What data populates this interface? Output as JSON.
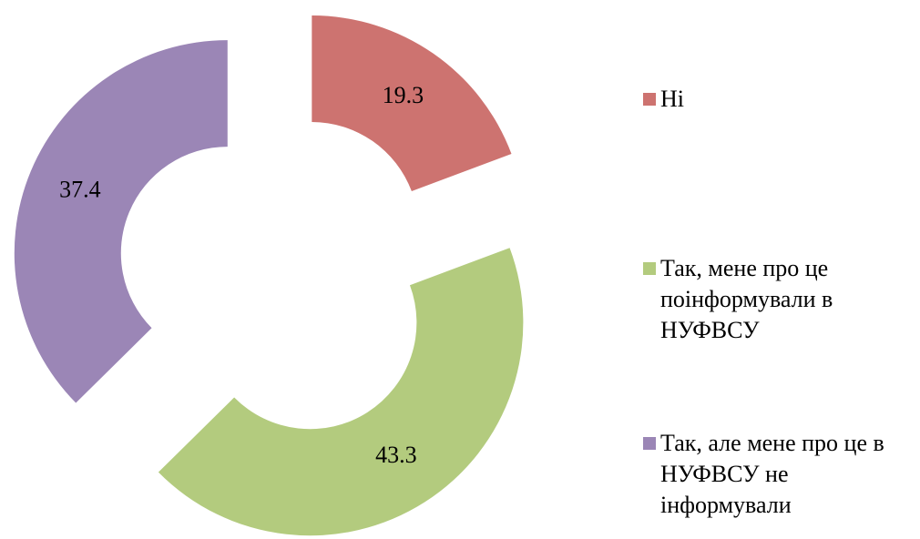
{
  "chart_data": {
    "type": "donut",
    "categories": [
      "Ні",
      "Так, мене про це поінформували в НУФВСУ",
      "Так, але мене про це в НУФВСУ не інформували"
    ],
    "values": [
      19.3,
      43.3,
      37.4
    ],
    "colors": [
      "#cd7370",
      "#b3cb7e",
      "#9b86b6"
    ],
    "legend": "right"
  }
}
